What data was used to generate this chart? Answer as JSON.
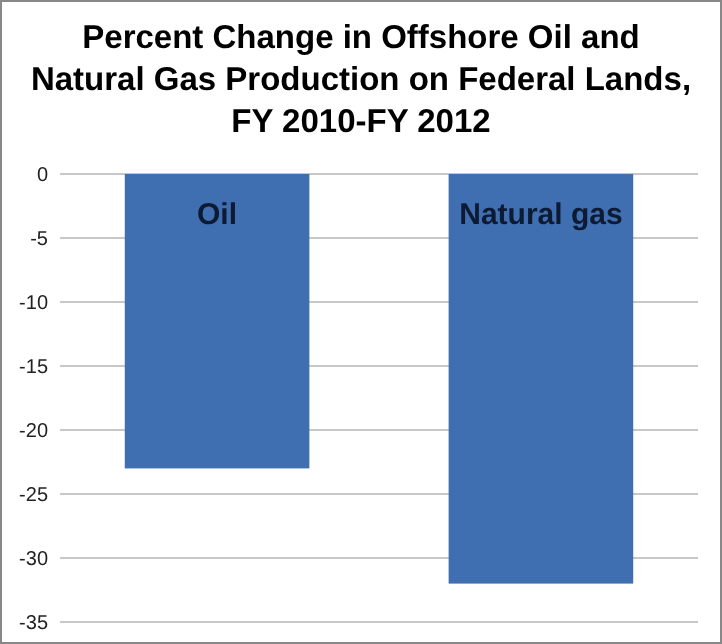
{
  "chart_data": {
    "type": "bar",
    "title": "Percent Change in Offshore Oil and Natural Gas Production on Federal Lands, FY 2010-FY 2012",
    "categories": [
      "Oil",
      "Natural gas"
    ],
    "values": [
      -23,
      -32
    ],
    "color": "#3f6fb0",
    "ylim": [
      -35,
      0
    ],
    "yticks": [
      0,
      -5,
      -10,
      -15,
      -20,
      -25,
      -30,
      -35
    ],
    "grid": "y"
  }
}
